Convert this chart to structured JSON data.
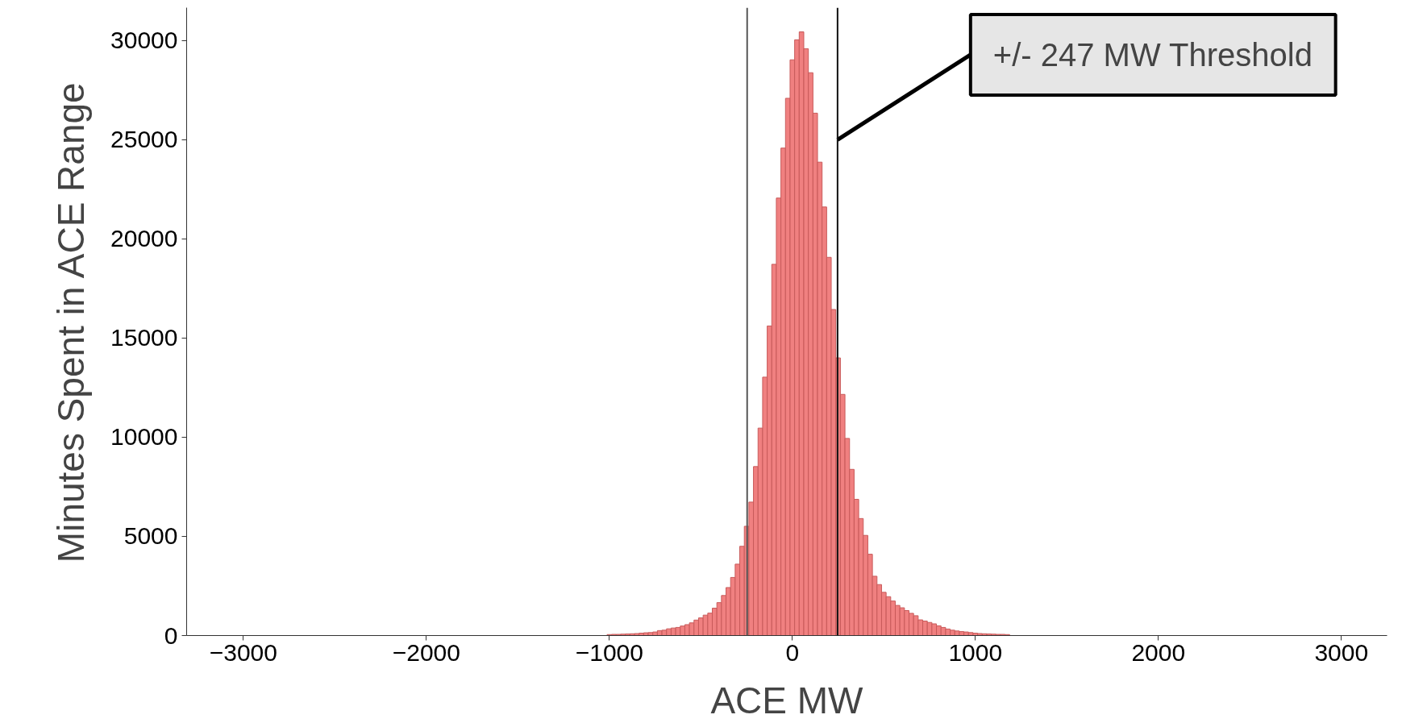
{
  "chart_data": {
    "type": "histogram",
    "xlabel": "ACE MW",
    "ylabel": "Minutes Spent in ACE Range",
    "bins": [
      -1012.5,
      -987.5,
      -962.5,
      -937.5,
      -912.5,
      -887.5,
      -862.5,
      -837.5,
      -812.5,
      -787.5,
      -762.5,
      -737.5,
      -712.5,
      -687.5,
      -662.5,
      -637.5,
      -612.5,
      -587.5,
      -562.5,
      -537.5,
      -512.5,
      -487.5,
      -462.5,
      -437.5,
      -412.5,
      -387.5,
      -362.5,
      -337.5,
      -312.5,
      -287.5,
      -262.5,
      -237.5,
      -212.5,
      -187.5,
      -162.5,
      -137.5,
      -112.5,
      -87.5,
      -62.5,
      -37.5,
      -12.5,
      12.5,
      37.5,
      62.5,
      87.5,
      112.5,
      137.5,
      162.5,
      187.5,
      212.5,
      237.5,
      262.5,
      287.5,
      312.5,
      337.5,
      362.5,
      387.5,
      412.5,
      437.5,
      462.5,
      487.5,
      512.5,
      537.5,
      562.5,
      587.5,
      612.5,
      637.5,
      662.5,
      687.5,
      712.5,
      737.5,
      762.5,
      787.5,
      812.5,
      837.5,
      862.5,
      887.5,
      912.5,
      937.5,
      962.5,
      987.5,
      1012.5,
      1037.5,
      1062.5,
      1087.5,
      1112.5,
      1137.5,
      1162.5,
      1187.5
    ],
    "values": [
      50,
      60,
      60,
      70,
      80,
      90,
      100,
      120,
      140,
      150,
      180,
      250,
      270,
      340,
      380,
      410,
      480,
      550,
      640,
      780,
      890,
      1030,
      1130,
      1380,
      1660,
      2020,
      2420,
      2930,
      3600,
      4500,
      5510,
      6730,
      8520,
      10460,
      13030,
      15610,
      18720,
      22060,
      24580,
      27090,
      29030,
      30040,
      30440,
      29590,
      28380,
      26340,
      23870,
      21610,
      19070,
      16440,
      14000,
      12160,
      9940,
      8380,
      6870,
      5900,
      5050,
      4100,
      2990,
      2570,
      2180,
      1960,
      1740,
      1520,
      1400,
      1260,
      1120,
      1000,
      790,
      730,
      660,
      590,
      490,
      410,
      330,
      270,
      230,
      200,
      180,
      150,
      120,
      100,
      90,
      80,
      70,
      60,
      60,
      50
    ],
    "color": "#f08080",
    "xlim": [
      -3310,
      3250
    ],
    "ylim": [
      0,
      31660
    ],
    "xticks": [
      {
        "value": -3000,
        "label": "−3000"
      },
      {
        "value": -2000,
        "label": "−2000"
      },
      {
        "value": -1000,
        "label": "−1000"
      },
      0,
      1000,
      2000,
      3000
    ],
    "yticks": [
      0,
      5000,
      10000,
      15000,
      20000,
      25000,
      30000
    ],
    "ref_lines": [
      {
        "axis": "x",
        "value": -247,
        "color": "#555555"
      },
      {
        "axis": "x",
        "value": 247,
        "color": "#111111"
      }
    ],
    "annotations": [
      {
        "text": "+/- 247 MW Threshold",
        "x": 247,
        "y": 25000
      }
    ],
    "grid": false
  }
}
